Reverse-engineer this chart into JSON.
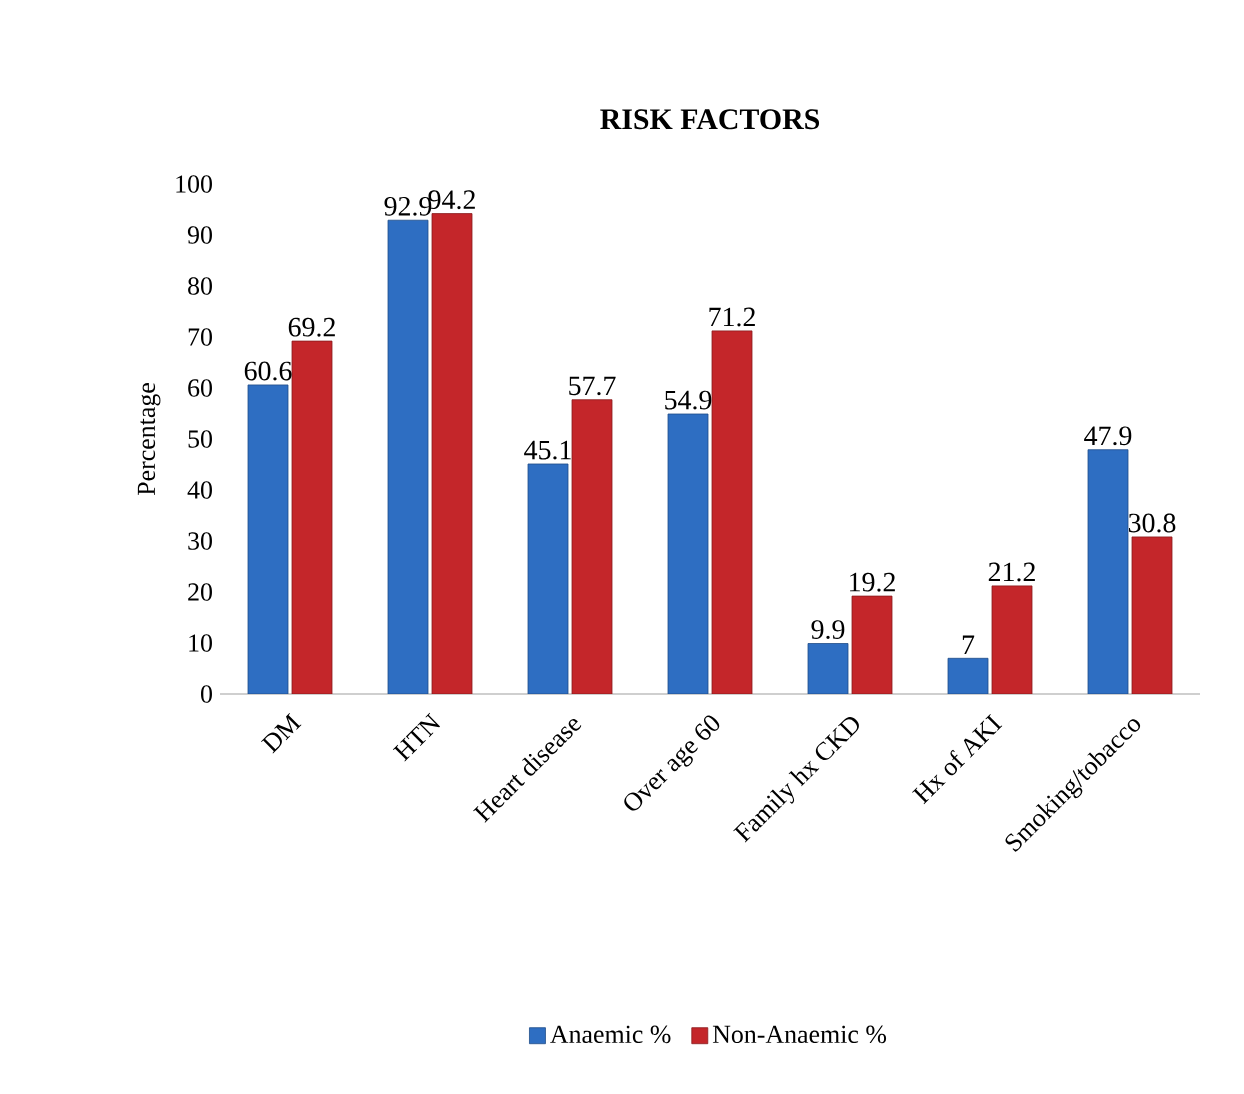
{
  "chart_data": {
    "type": "bar",
    "title": "RISK FACTORS",
    "ylabel": "Percentage",
    "categories": [
      "DM",
      "HTN",
      "Heart disease",
      "Over age 60",
      "Family hx CKD",
      "Hx of AKI",
      "Smoking/tobacco"
    ],
    "series": [
      {
        "name": "Anaemic %",
        "color": "#2e6ec2",
        "values": [
          60.6,
          92.9,
          45.1,
          54.9,
          9.9,
          7,
          47.9
        ]
      },
      {
        "name": "Non-Anaemic %",
        "color": "#c4262a",
        "values": [
          69.2,
          94.2,
          57.7,
          71.2,
          19.2,
          21.2,
          30.8
        ]
      }
    ],
    "ylim": [
      0,
      100
    ],
    "yticks": [
      0,
      10,
      20,
      30,
      40,
      50,
      60,
      70,
      80,
      90,
      100
    ],
    "data_labels": true,
    "legend": "bottom"
  }
}
